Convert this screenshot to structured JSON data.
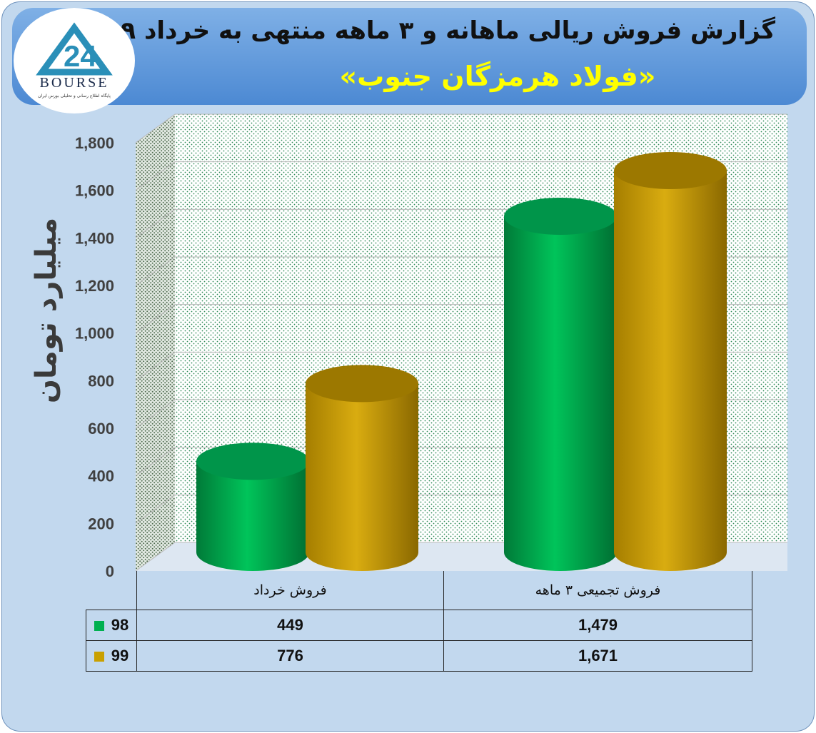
{
  "header": {
    "title": "گزارش فروش ریالی ماهانه و ۳ ماهه منتهی به خرداد ۹۹",
    "subtitle": "«فولاد هرمزگان جنوب»",
    "logo_text": "BOURSE",
    "logo_subtext": "پایگاه اطلاع رسانی و تحلیلی بورس ایران"
  },
  "chart_data": {
    "type": "bar",
    "categories": [
      "فروش خرداد",
      "فروش تجمیعی ۳ ماهه"
    ],
    "series": [
      {
        "name": "98",
        "values": [
          449,
          1479
        ],
        "color": "#00b050"
      },
      {
        "name": "99",
        "values": [
          776,
          1671
        ],
        "color": "#c9a000"
      }
    ],
    "ylabel": "میلیارد تومان",
    "ylim": [
      0,
      1800
    ],
    "yticks": [
      "0",
      "200",
      "400",
      "600",
      "800",
      "1,000",
      "1,200",
      "1,400",
      "1,600",
      "1,800"
    ],
    "grid": true,
    "data_table": {
      "rows": [
        {
          "legend": "98",
          "color": "#00b050",
          "values": [
            "449",
            "1,479"
          ]
        },
        {
          "legend": "99",
          "color": "#c9a000",
          "values": [
            "776",
            "1,671"
          ]
        }
      ]
    }
  }
}
